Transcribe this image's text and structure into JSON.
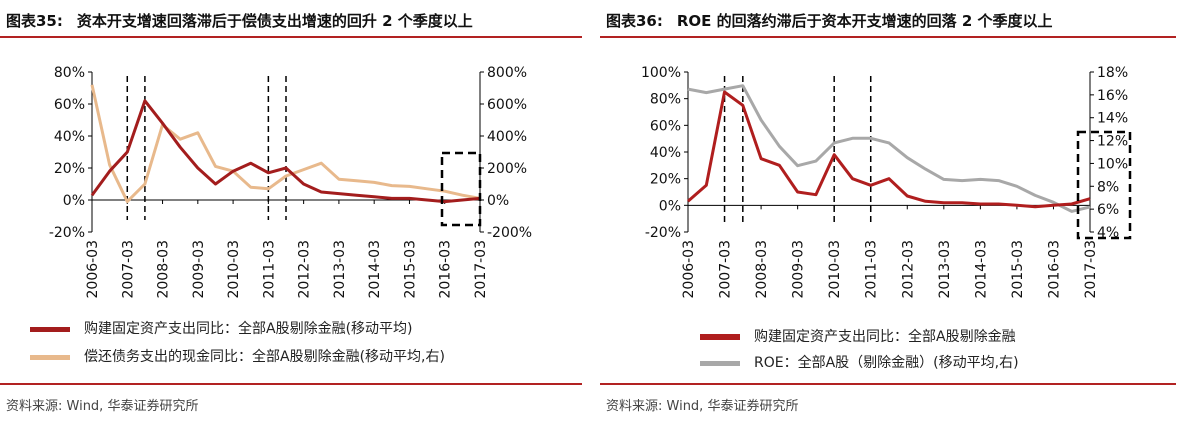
{
  "left": {
    "title_num": "图表35:",
    "title_text": "资本开支增速回落滞后于偿债支出增速的回升 2 个季度以上",
    "source": "资料来源: Wind, 华泰证券研究所",
    "colors": {
      "series1": "#a31d1d",
      "series2": "#e8b98c"
    },
    "chart_data": {
      "type": "line",
      "x": [
        "2006-03",
        "2006-09",
        "2007-03",
        "2007-09",
        "2008-03",
        "2008-09",
        "2009-03",
        "2009-09",
        "2010-03",
        "2010-09",
        "2011-03",
        "2011-09",
        "2012-03",
        "2012-09",
        "2013-03",
        "2013-09",
        "2014-03",
        "2014-09",
        "2015-03",
        "2015-09",
        "2016-03",
        "2016-09",
        "2017-03"
      ],
      "xticks": [
        "2006-03",
        "2007-03",
        "2008-03",
        "2009-03",
        "2010-03",
        "2011-03",
        "2012-03",
        "2013-03",
        "2014-03",
        "2015-03",
        "2016-03",
        "2017-03"
      ],
      "yticks_left": [
        "80%",
        "60%",
        "40%",
        "20%",
        "0%",
        "-20%"
      ],
      "yticks_right": [
        "800%",
        "600%",
        "400%",
        "200%",
        "0%",
        "-200%"
      ],
      "ylim_left": [
        -20,
        80
      ],
      "ylim_right": [
        -200,
        800
      ],
      "series": [
        {
          "name": "购建固定资产支出同比：全部A股剔除金融(移动平均)",
          "axis": "left",
          "values": [
            3,
            18,
            30,
            62,
            48,
            33,
            20,
            10,
            18,
            23,
            17,
            20,
            10,
            5,
            4,
            3,
            2,
            1,
            1,
            0,
            -1,
            0,
            1
          ]
        },
        {
          "name": "偿还债务支出的现金同比：全部A股剔除金融(移动平均,右)",
          "axis": "right",
          "values": [
            720,
            220,
            -10,
            100,
            470,
            380,
            420,
            210,
            180,
            80,
            70,
            150,
            190,
            230,
            130,
            120,
            110,
            90,
            85,
            70,
            55,
            30,
            10
          ]
        }
      ],
      "vlines": [
        "2007-03",
        "2007-09",
        "2011-03",
        "2011-09"
      ],
      "grid": false,
      "legend_position": "bottom"
    }
  },
  "right": {
    "title_num": "图表36:",
    "title_text": "ROE 的回落约滞后于资本开支增速的回落 2 个季度以上",
    "source": "资料来源: Wind, 华泰证券研究所",
    "colors": {
      "series1": "#b01e1e",
      "series2": "#a8a8a8"
    },
    "chart_data": {
      "type": "line",
      "x": [
        "2006-03",
        "2006-09",
        "2007-03",
        "2007-09",
        "2008-03",
        "2008-09",
        "2009-03",
        "2009-09",
        "2010-03",
        "2010-09",
        "2011-03",
        "2011-09",
        "2012-03",
        "2012-09",
        "2013-03",
        "2013-09",
        "2014-03",
        "2014-09",
        "2015-03",
        "2015-09",
        "2016-03",
        "2016-09",
        "2017-03"
      ],
      "xticks": [
        "2006-03",
        "2007-03",
        "2008-03",
        "2009-03",
        "2010-03",
        "2011-03",
        "2012-03",
        "2013-03",
        "2014-03",
        "2015-03",
        "2016-03",
        "2017-03"
      ],
      "yticks_left": [
        "100%",
        "80%",
        "60%",
        "40%",
        "20%",
        "0%",
        "-20%"
      ],
      "yticks_right": [
        "18%",
        "16%",
        "14%",
        "12%",
        "10%",
        "8%",
        "6%",
        "4%"
      ],
      "ylim_left": [
        -20,
        100
      ],
      "ylim_right": [
        4,
        18
      ],
      "series": [
        {
          "name": "购建固定资产支出同比：全部A股剔除金融",
          "axis": "left",
          "values": [
            3,
            15,
            85,
            75,
            35,
            30,
            10,
            8,
            38,
            20,
            15,
            20,
            7,
            3,
            2,
            2,
            1,
            1,
            0,
            -1,
            0,
            1,
            5
          ]
        },
        {
          "name": "ROE：全部A股（剔除金融）(移动平均,右)",
          "axis": "right",
          "values": [
            16.5,
            16.2,
            16.5,
            16.8,
            13.8,
            11.5,
            9.8,
            10.2,
            11.8,
            12.2,
            12.2,
            11.8,
            10.5,
            9.5,
            8.6,
            8.5,
            8.6,
            8.5,
            8.0,
            7.2,
            6.6,
            5.8,
            6.2
          ]
        }
      ],
      "vlines": [
        "2007-03",
        "2007-09",
        "2010-03",
        "2011-03"
      ],
      "grid": false,
      "legend_position": "bottom"
    }
  }
}
